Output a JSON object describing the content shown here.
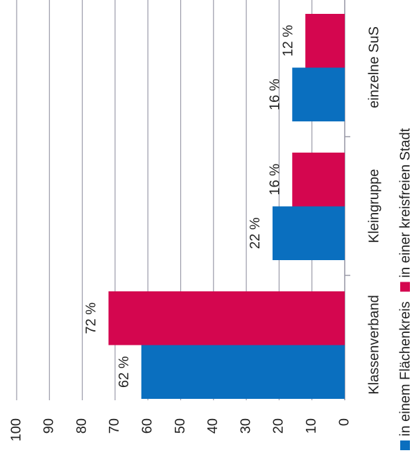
{
  "chart_data": {
    "type": "bar",
    "categories": [
      "Klassenverband",
      "Kleingruppe",
      "einzelne SuS"
    ],
    "series": [
      {
        "name": "in einem Flächenkreis",
        "color": "#0a6fbf",
        "values": [
          62,
          22,
          16
        ],
        "value_labels": [
          "62 %",
          "22 %",
          "16 %"
        ]
      },
      {
        "name": "in einer kreisfreien Stadt",
        "color": "#d4064f",
        "values": [
          72,
          16,
          12
        ],
        "value_labels": [
          "72 %",
          "16 %",
          "12 %"
        ]
      }
    ],
    "ylim": [
      0,
      100
    ],
    "yticks": [
      0,
      10,
      20,
      30,
      40,
      50,
      60,
      70,
      80,
      90,
      100
    ],
    "grid": true
  }
}
